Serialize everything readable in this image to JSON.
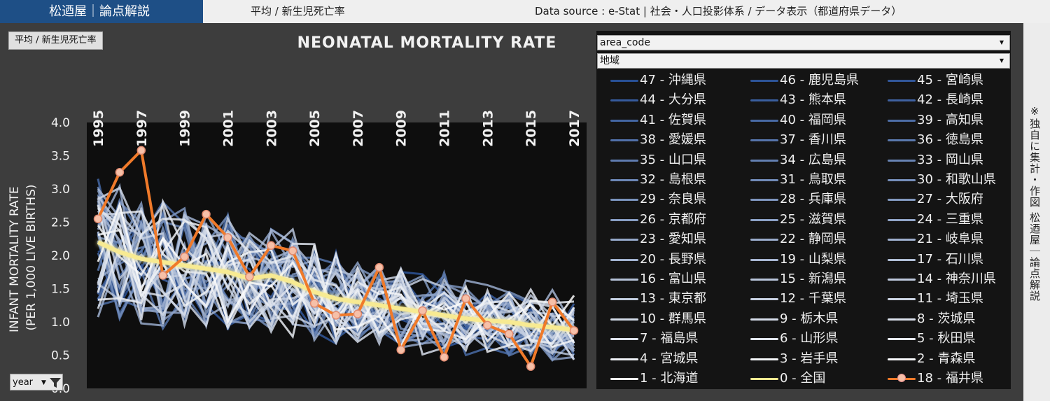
{
  "header": {
    "brand": "松迺屋｜論点解説",
    "breadcrumb": "平均 / 新生児死亡率",
    "source": "Data source : e-Stat | 社会・人口投影体系 / データ表示（都道府県データ）"
  },
  "sidebar_text": "※独自に集計・作図 松迺屋｜論点解説",
  "chart_button": "平均 / 新生児死亡率",
  "year_filter": "year",
  "filters": {
    "area_code": "area_code",
    "region": "地域"
  },
  "colors": {
    "national": "#f7ea92",
    "highlight": "#f07a2a",
    "highlight_marker": "#f6c0a8",
    "plot_bg": "#0e0e0e",
    "panel_bg": "#3d3d3d"
  },
  "chart_data": {
    "type": "line",
    "title": "NEONATAL MORTALITY RATE",
    "ylabel": "INFANT MORTALITY RATE\n(PER 1,000 LIVE BIRTHS)",
    "x": [
      1995,
      1996,
      1997,
      1998,
      1999,
      2000,
      2001,
      2002,
      2003,
      2004,
      2005,
      2006,
      2007,
      2008,
      2009,
      2010,
      2011,
      2012,
      2013,
      2014,
      2015,
      2016,
      2017
    ],
    "x_ticks": [
      "1995",
      "1997",
      "1999",
      "2001",
      "2003",
      "2005",
      "2007",
      "2009",
      "2011",
      "2013",
      "2015",
      "2017"
    ],
    "y_ticks": [
      "0.0",
      "0.5",
      "1.0",
      "1.5",
      "2.0",
      "2.5",
      "3.0",
      "3.5",
      "4.0"
    ],
    "ylim": [
      0,
      4.0
    ],
    "grid": false,
    "legend_placement": "right",
    "series": [
      {
        "name": "0 - 全国",
        "role": "national",
        "values": [
          2.2,
          2.05,
          1.95,
          1.9,
          1.85,
          1.8,
          1.75,
          1.65,
          1.7,
          1.6,
          1.45,
          1.35,
          1.3,
          1.25,
          1.2,
          1.15,
          1.1,
          1.05,
          1.02,
          1.0,
          0.95,
          0.92,
          0.88
        ]
      },
      {
        "name": "18 - 福井県",
        "role": "highlight",
        "values": [
          2.55,
          3.25,
          3.58,
          1.7,
          1.98,
          2.62,
          2.27,
          1.68,
          2.15,
          2.07,
          1.28,
          1.1,
          1.12,
          1.82,
          0.58,
          1.17,
          0.47,
          1.35,
          0.95,
          0.82,
          0.33,
          1.3,
          0.87
        ]
      }
    ],
    "legend": [
      "47 - 沖縄県",
      "46 - 鹿児島県",
      "45 - 宮崎県",
      "44 - 大分県",
      "43 - 熊本県",
      "42 - 長崎県",
      "41 - 佐賀県",
      "40 - 福岡県",
      "39 - 高知県",
      "38 - 愛媛県",
      "37 - 香川県",
      "36 - 徳島県",
      "35 - 山口県",
      "34 - 広島県",
      "33 - 岡山県",
      "32 - 島根県",
      "31 - 鳥取県",
      "30 - 和歌山県",
      "29 - 奈良県",
      "28 - 兵庫県",
      "27 - 大阪府",
      "26 - 京都府",
      "25 - 滋賀県",
      "24 - 三重県",
      "23 - 愛知県",
      "22 - 静岡県",
      "21 - 岐阜県",
      "20 - 長野県",
      "19 - 山梨県",
      "17 - 石川県",
      "16 - 富山県",
      "15 - 新潟県",
      "14 - 神奈川県",
      "13 - 東京都",
      "12 - 千葉県",
      "11 - 埼玉県",
      "10 - 群馬県",
      "9 - 栃木県",
      "8 - 茨城県",
      "7 - 福島県",
      "6 - 山形県",
      "5 - 秋田県",
      "4 - 宮城県",
      "3 - 岩手県",
      "2 - 青森県",
      "1 - 北海道",
      "0 - 全国",
      "18 - 福井県"
    ]
  }
}
